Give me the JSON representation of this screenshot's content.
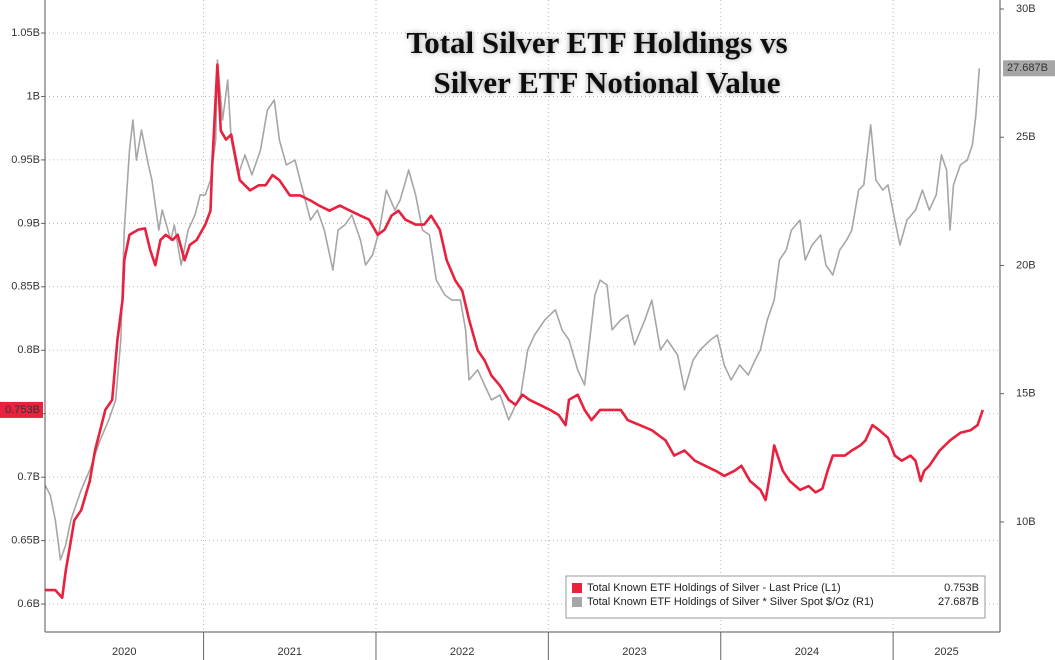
{
  "chart_data": {
    "type": "line",
    "title": [
      "Total Silver ETF Holdings vs",
      "Silver ETF Notional Value"
    ],
    "xlim": [
      2020.08,
      2025.62
    ],
    "xticks": [
      2020,
      2021,
      2022,
      2023,
      2024,
      2025
    ],
    "ylim": [
      0.578,
      1.076
    ],
    "yticks": [
      {
        "value": 0.6,
        "label": "0.6B"
      },
      {
        "value": 0.65,
        "label": "0.65B"
      },
      {
        "value": 0.7,
        "label": "0.7B"
      },
      {
        "value": 0.75,
        "label": "0.75B"
      },
      {
        "value": 0.8,
        "label": "0.8B"
      },
      {
        "value": 0.85,
        "label": "0.85B"
      },
      {
        "value": 0.9,
        "label": "0.9B"
      },
      {
        "value": 0.95,
        "label": "0.95B"
      },
      {
        "value": 1,
        "label": "1B"
      },
      {
        "value": 1.05,
        "label": "1.05B"
      }
    ],
    "y2lim": [
      5.71,
      30.35
    ],
    "y2ticks": [
      {
        "value": 10,
        "label": "10B"
      },
      {
        "value": 15,
        "label": "15B"
      },
      {
        "value": 20,
        "label": "20B"
      },
      {
        "value": 25,
        "label": "25B"
      },
      {
        "value": 30,
        "label": "30B"
      }
    ],
    "grid": true,
    "legend": "lower-right",
    "series": [
      {
        "name": "Total Known ETF Holdings of Silver - Last Price (L1)",
        "color": "#e8213f",
        "axis": "y",
        "last_label": "0.753B",
        "x": [
          2020.08,
          2020.14,
          2020.18,
          2020.2,
          2020.23,
          2020.25,
          2020.29,
          2020.34,
          2020.37,
          2020.4,
          2020.43,
          2020.47,
          2020.5,
          2020.53,
          2020.54,
          2020.57,
          2020.62,
          2020.66,
          2020.69,
          2020.72,
          2020.75,
          2020.78,
          2020.82,
          2020.85,
          2020.89,
          2020.92,
          2020.96,
          2021.01,
          2021.04,
          2021.05,
          2021.08,
          2021.1,
          2021.13,
          2021.16,
          2021.21,
          2021.27,
          2021.32,
          2021.36,
          2021.4,
          2021.44,
          2021.5,
          2021.56,
          2021.62,
          2021.67,
          2021.73,
          2021.79,
          2021.85,
          2021.91,
          2021.96,
          2022.01,
          2022.05,
          2022.09,
          2022.13,
          2022.17,
          2022.23,
          2022.28,
          2022.32,
          2022.37,
          2022.41,
          2022.46,
          2022.5,
          2022.54,
          2022.59,
          2022.63,
          2022.67,
          2022.72,
          2022.77,
          2022.81,
          2022.85,
          2022.89,
          2022.95,
          2023.01,
          2023.06,
          2023.1,
          2023.12,
          2023.17,
          2023.21,
          2023.25,
          2023.3,
          2023.37,
          2023.42,
          2023.46,
          2023.53,
          2023.6,
          2023.68,
          2023.73,
          2023.79,
          2023.85,
          2023.91,
          2023.97,
          2024.02,
          2024.08,
          2024.12,
          2024.17,
          2024.23,
          2024.26,
          2024.29,
          2024.31,
          2024.36,
          2024.4,
          2024.46,
          2024.51,
          2024.55,
          2024.59,
          2024.62,
          2024.65,
          2024.72,
          2024.76,
          2024.81,
          2024.84,
          2024.88,
          2024.92,
          2024.97,
          2025.01,
          2025.05,
          2025.1,
          2025.13,
          2025.16,
          2025.18,
          2025.21,
          2025.27,
          2025.33,
          2025.39,
          2025.45,
          2025.49,
          2025.52
        ],
        "values": [
          0.611,
          0.611,
          0.605,
          0.626,
          0.65,
          0.666,
          0.674,
          0.697,
          0.721,
          0.737,
          0.753,
          0.761,
          0.808,
          0.84,
          0.871,
          0.891,
          0.895,
          0.896,
          0.879,
          0.867,
          0.887,
          0.891,
          0.887,
          0.891,
          0.871,
          0.883,
          0.887,
          0.899,
          0.91,
          0.946,
          1.025,
          0.973,
          0.966,
          0.97,
          0.934,
          0.926,
          0.93,
          0.93,
          0.938,
          0.934,
          0.922,
          0.922,
          0.918,
          0.914,
          0.91,
          0.914,
          0.91,
          0.906,
          0.903,
          0.891,
          0.895,
          0.906,
          0.91,
          0.903,
          0.899,
          0.899,
          0.906,
          0.895,
          0.871,
          0.855,
          0.847,
          0.824,
          0.8,
          0.792,
          0.78,
          0.772,
          0.761,
          0.757,
          0.765,
          0.761,
          0.757,
          0.753,
          0.749,
          0.741,
          0.761,
          0.765,
          0.753,
          0.745,
          0.753,
          0.753,
          0.753,
          0.745,
          0.741,
          0.737,
          0.729,
          0.717,
          0.721,
          0.713,
          0.709,
          0.705,
          0.701,
          0.705,
          0.709,
          0.697,
          0.69,
          0.682,
          0.705,
          0.725,
          0.705,
          0.697,
          0.69,
          0.693,
          0.688,
          0.691,
          0.705,
          0.717,
          0.717,
          0.721,
          0.725,
          0.729,
          0.741,
          0.737,
          0.731,
          0.717,
          0.713,
          0.717,
          0.713,
          0.697,
          0.705,
          0.709,
          0.721,
          0.729,
          0.735,
          0.737,
          0.741,
          0.753
        ]
      },
      {
        "name": "Total Known ETF Holdings of Silver * Silver Spot $/Oz (R1)",
        "color": "#a6a6a6",
        "axis": "y2",
        "last_label": "27.687B",
        "x": [
          2020.08,
          2020.11,
          2020.14,
          2020.17,
          2020.2,
          2020.23,
          2020.25,
          2020.29,
          2020.34,
          2020.4,
          2020.45,
          2020.49,
          2020.52,
          2020.54,
          2020.57,
          2020.59,
          2020.61,
          2020.64,
          2020.68,
          2020.7,
          2020.74,
          2020.76,
          2020.81,
          2020.83,
          2020.87,
          2020.91,
          2020.95,
          2020.98,
          2021.01,
          2021.04,
          2021.07,
          2021.08,
          2021.11,
          2021.14,
          2021.16,
          2021.2,
          2021.24,
          2021.28,
          2021.33,
          2021.37,
          2021.41,
          2021.44,
          2021.48,
          2021.53,
          2021.56,
          2021.62,
          2021.66,
          2021.7,
          2021.75,
          2021.78,
          2021.82,
          2021.86,
          2021.91,
          2021.94,
          2021.98,
          2022.02,
          2022.06,
          2022.11,
          2022.14,
          2022.19,
          2022.23,
          2022.27,
          2022.31,
          2022.35,
          2022.4,
          2022.44,
          2022.49,
          2022.52,
          2022.54,
          2022.59,
          2022.63,
          2022.67,
          2022.72,
          2022.77,
          2022.81,
          2022.84,
          2022.88,
          2022.92,
          2022.98,
          2023.04,
          2023.08,
          2023.12,
          2023.17,
          2023.21,
          2023.24,
          2023.27,
          2023.3,
          2023.34,
          2023.37,
          2023.42,
          2023.46,
          2023.5,
          2023.56,
          2023.6,
          2023.65,
          2023.69,
          2023.75,
          2023.79,
          2023.84,
          2023.88,
          2023.94,
          2023.98,
          2024.02,
          2024.06,
          2024.11,
          2024.16,
          2024.2,
          2024.23,
          2024.27,
          2024.31,
          2024.34,
          2024.38,
          2024.41,
          2024.46,
          2024.49,
          2024.53,
          2024.58,
          2024.61,
          2024.65,
          2024.69,
          2024.73,
          2024.76,
          2024.8,
          2024.83,
          2024.87,
          2024.9,
          2024.94,
          2024.97,
          2025.01,
          2025.04,
          2025.08,
          2025.13,
          2025.17,
          2025.21,
          2025.25,
          2025.28,
          2025.31,
          2025.33,
          2025.35,
          2025.39,
          2025.43,
          2025.46,
          2025.48,
          2025.5
        ],
        "values": [
          11.44,
          11.05,
          10.08,
          8.52,
          9.1,
          10.08,
          10.47,
          11.25,
          12.03,
          13.2,
          13.98,
          14.76,
          17.1,
          21.38,
          24.5,
          25.67,
          24.11,
          25.28,
          23.92,
          23.33,
          21.38,
          22.16,
          20.99,
          21.58,
          20.02,
          21.38,
          21.97,
          22.75,
          22.75,
          23.33,
          24.89,
          28.01,
          25.67,
          27.23,
          24.89,
          23.53,
          24.31,
          23.53,
          24.5,
          26.06,
          26.45,
          24.89,
          23.92,
          24.11,
          23.33,
          21.77,
          22.16,
          21.38,
          19.82,
          21.38,
          21.58,
          21.97,
          20.99,
          20.02,
          20.41,
          21.38,
          22.94,
          22.16,
          22.55,
          23.72,
          22.75,
          21.38,
          21.19,
          19.43,
          18.85,
          18.65,
          18.65,
          17.49,
          15.54,
          15.93,
          15.34,
          14.76,
          14.95,
          13.98,
          14.56,
          14.95,
          16.71,
          17.29,
          17.88,
          18.27,
          17.49,
          17.1,
          15.93,
          15.34,
          17.1,
          18.85,
          19.43,
          19.24,
          17.49,
          17.88,
          18.07,
          16.9,
          17.88,
          18.65,
          16.71,
          17.1,
          16.51,
          15.15,
          16.32,
          16.71,
          17.1,
          17.29,
          16.12,
          15.54,
          16.12,
          15.73,
          16.32,
          16.71,
          17.88,
          18.65,
          20.21,
          20.6,
          21.38,
          21.77,
          20.21,
          20.8,
          21.19,
          20.02,
          19.63,
          20.6,
          20.99,
          21.38,
          22.94,
          23.14,
          25.48,
          23.33,
          22.94,
          23.14,
          21.77,
          20.8,
          21.77,
          22.16,
          22.94,
          22.16,
          22.75,
          24.31,
          23.72,
          21.38,
          23.14,
          23.92,
          24.11,
          24.7,
          25.87,
          27.687
        ]
      }
    ]
  }
}
